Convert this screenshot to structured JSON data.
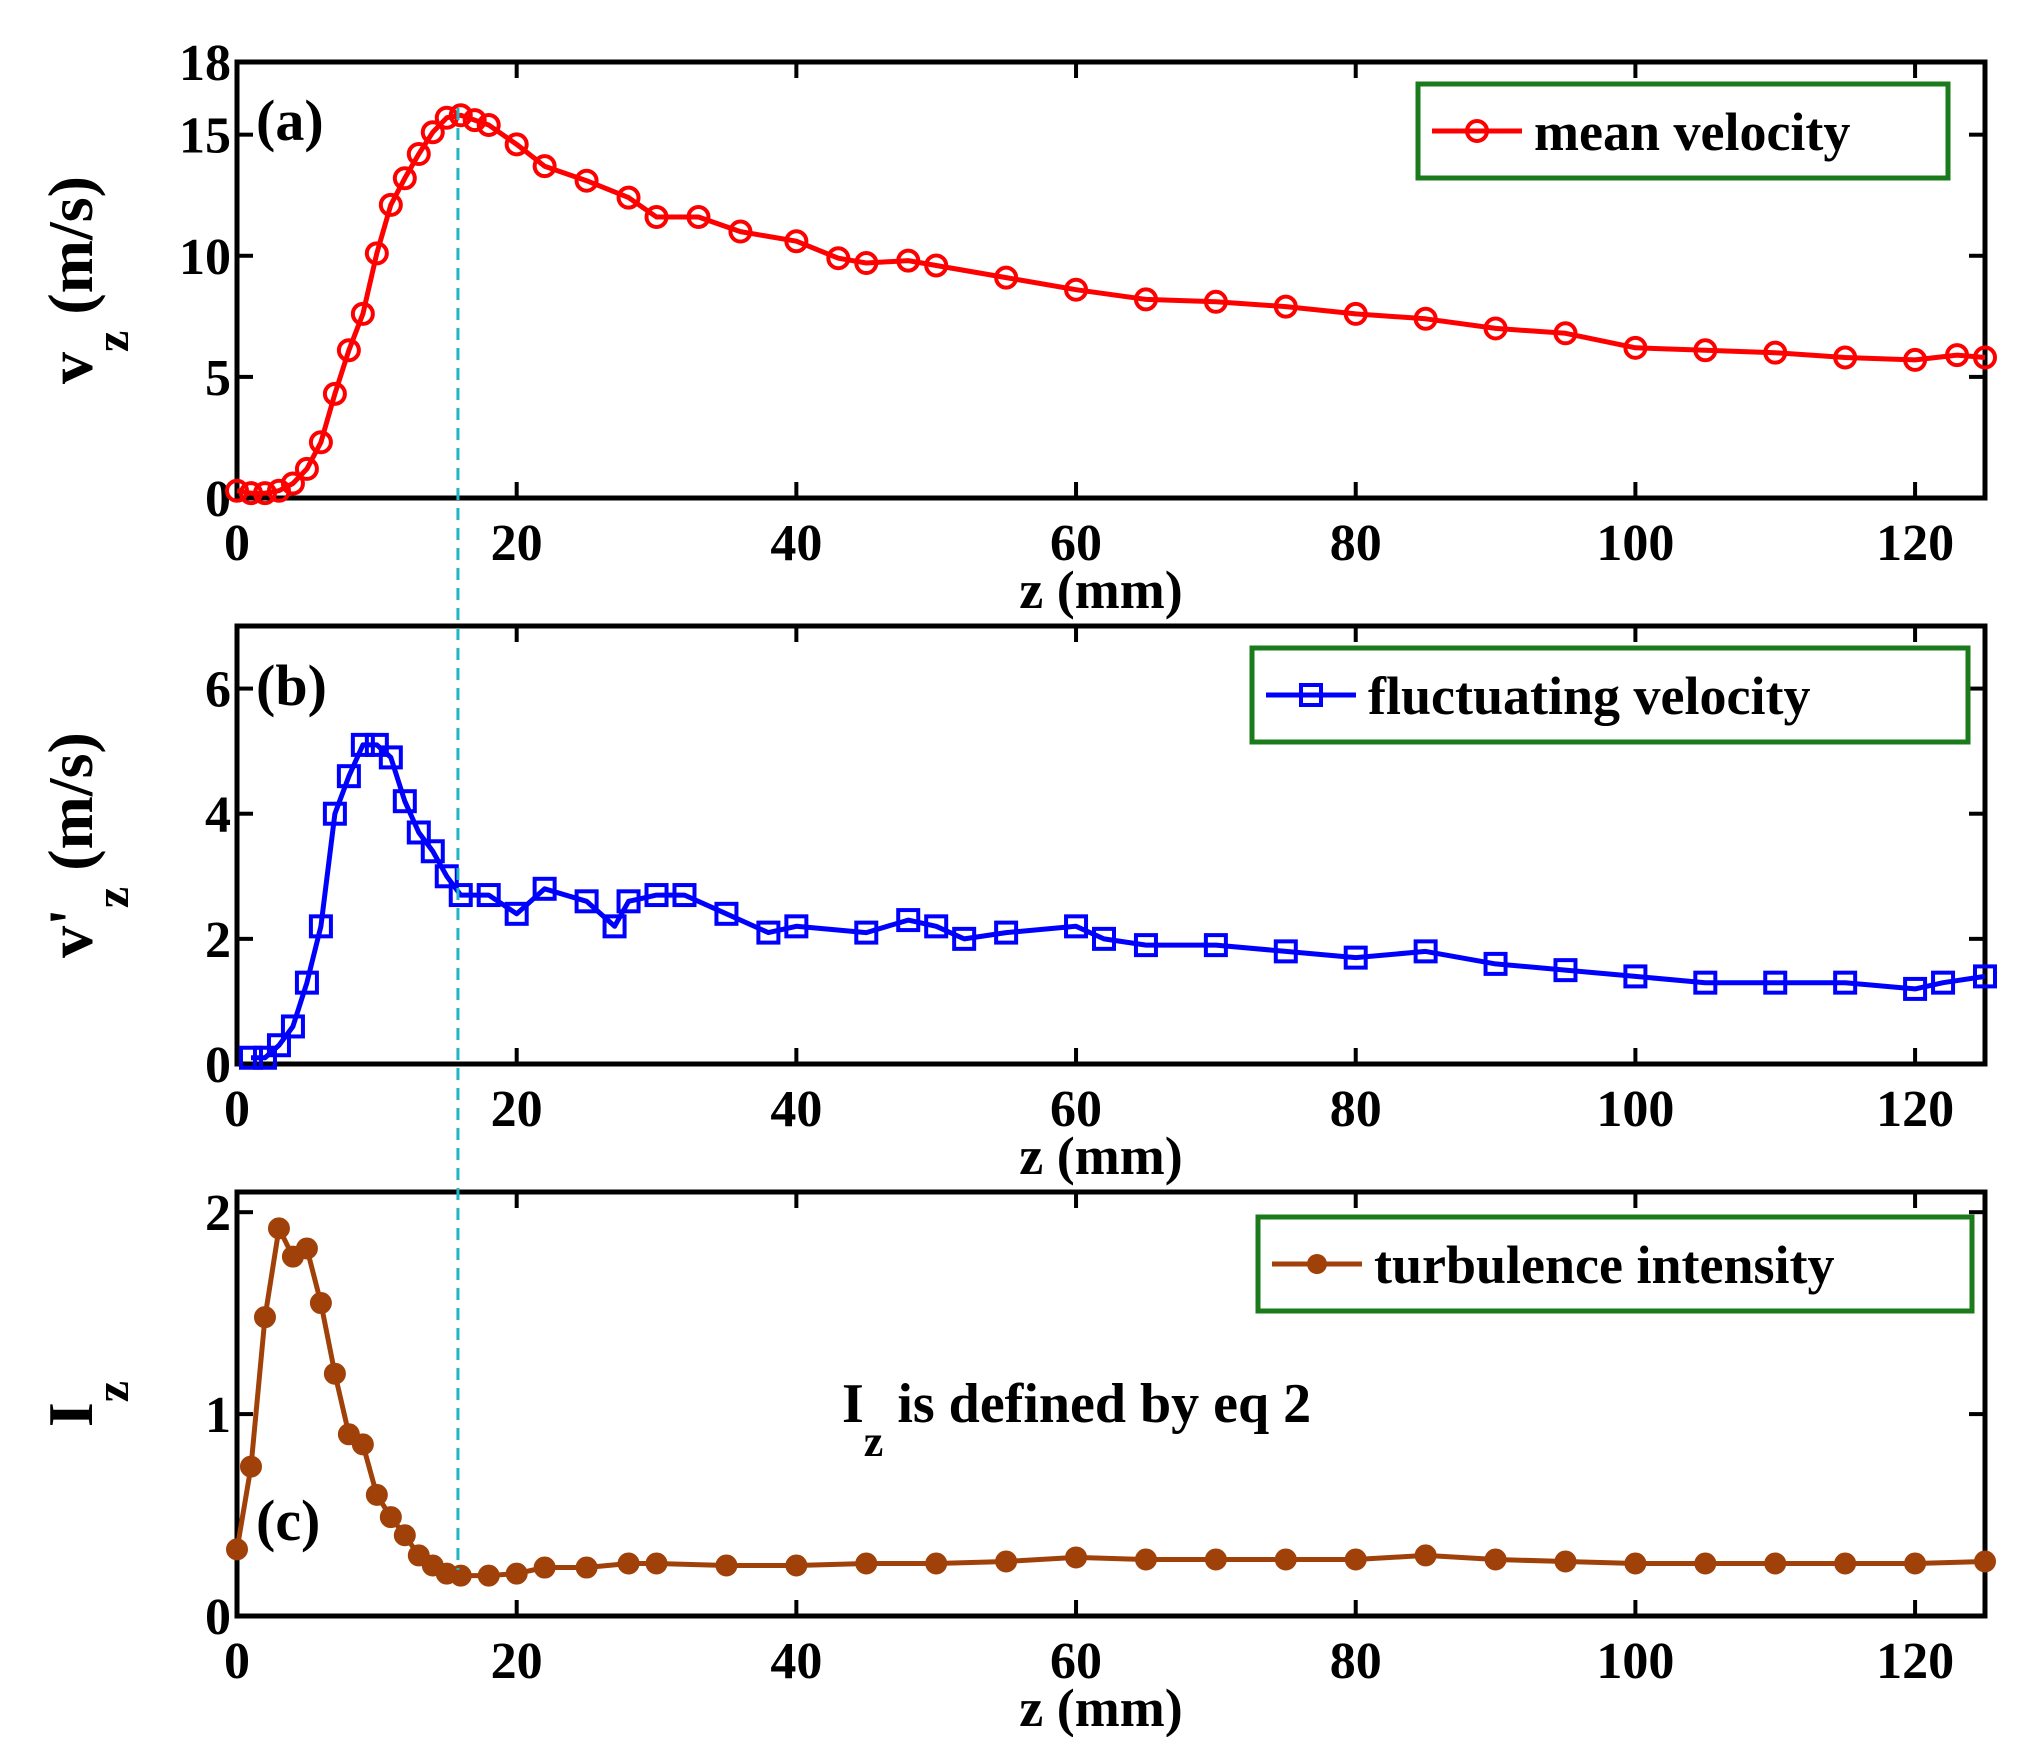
{
  "colors": {
    "mean": "#ff0000",
    "fluct": "#0000ff",
    "turb": "#a0410a",
    "tag": "#b12fc4",
    "legend_border": "#1b7a1b",
    "guide": "#22b5c4",
    "axis": "#000000"
  },
  "guide_line_z": 15.8,
  "panels": [
    {
      "tag": "(a)",
      "xlabel": "z (mm)",
      "ylabel_main": "v",
      "ylabel_sub": "z",
      "ylabel_rest": " (m/s)",
      "ylim": [
        0,
        18
      ],
      "yticks": [
        0,
        5,
        10,
        15,
        18
      ],
      "ytick_labels": [
        "0",
        "5",
        "10",
        "15",
        "18"
      ],
      "xlim": [
        0,
        125
      ],
      "xticks": [
        0,
        20,
        40,
        60,
        80,
        100,
        120
      ],
      "xtick_labels": [
        "0",
        "20",
        "40",
        "60",
        "80",
        "100",
        "120"
      ],
      "legend_label": "mean velocity"
    },
    {
      "tag": "(b)",
      "xlabel": "z (mm)",
      "ylabel_main": "v",
      "ylabel_prime": "'",
      "ylabel_sub": "z",
      "ylabel_rest": " (m/s)",
      "ylim": [
        0,
        7
      ],
      "yticks": [
        0,
        2,
        4,
        6
      ],
      "ytick_labels": [
        "0",
        "2",
        "4",
        "6"
      ],
      "xlim": [
        0,
        125
      ],
      "xticks": [
        0,
        20,
        40,
        60,
        80,
        100,
        120
      ],
      "xtick_labels": [
        "0",
        "20",
        "40",
        "60",
        "80",
        "100",
        "120"
      ],
      "legend_label": "fluctuating velocity"
    },
    {
      "tag": "(c)",
      "xlabel": "z (mm)",
      "ylabel_main": "I",
      "ylabel_sub": "z",
      "ylim": [
        0,
        2.1
      ],
      "yticks": [
        0,
        1,
        2
      ],
      "ytick_labels": [
        "0",
        "1",
        "2"
      ],
      "xlim": [
        0,
        125
      ],
      "xticks": [
        0,
        20,
        40,
        60,
        80,
        100,
        120
      ],
      "xtick_labels": [
        "0",
        "20",
        "40",
        "60",
        "80",
        "100",
        "120"
      ],
      "legend_label": "turbulence intensity",
      "annotation_main": "I",
      "annotation_sub": "z",
      "annotation_rest": " is defined by eq 2"
    }
  ],
  "chart_data": [
    {
      "type": "line",
      "title": "(a)",
      "xlabel": "z (mm)",
      "ylabel": "v_z (m/s)",
      "xlim": [
        0,
        125
      ],
      "ylim": [
        0,
        18
      ],
      "legend": "mean velocity",
      "legend_position": "top-right",
      "marker": "circle",
      "series": [
        {
          "name": "mean velocity",
          "x": [
            0,
            1,
            2,
            3,
            4,
            5,
            6,
            7,
            8,
            9,
            10,
            11,
            12,
            13,
            14,
            15,
            16,
            17,
            18,
            20,
            22,
            25,
            28,
            30,
            33,
            36,
            40,
            43,
            45,
            48,
            50,
            55,
            60,
            65,
            70,
            75,
            80,
            85,
            90,
            95,
            100,
            105,
            110,
            115,
            120,
            123,
            125
          ],
          "y": [
            0.3,
            0.2,
            0.2,
            0.3,
            0.6,
            1.2,
            2.3,
            4.3,
            6.1,
            7.6,
            10.1,
            12.1,
            13.2,
            14.2,
            15.1,
            15.7,
            15.8,
            15.6,
            15.4,
            14.6,
            13.7,
            13.1,
            12.4,
            11.6,
            11.6,
            11.0,
            10.6,
            9.9,
            9.7,
            9.8,
            9.6,
            9.1,
            8.6,
            8.2,
            8.1,
            7.9,
            7.6,
            7.4,
            7.0,
            6.8,
            6.2,
            6.1,
            6.0,
            5.8,
            5.7,
            5.9,
            5.8
          ]
        }
      ]
    },
    {
      "type": "line",
      "title": "(b)",
      "xlabel": "z (mm)",
      "ylabel": "v'_z (m/s)",
      "xlim": [
        0,
        125
      ],
      "ylim": [
        0,
        7
      ],
      "legend": "fluctuating velocity",
      "legend_position": "top-right",
      "marker": "square",
      "series": [
        {
          "name": "fluctuating velocity",
          "x": [
            1,
            2,
            3,
            4,
            5,
            6,
            7,
            8,
            9,
            10,
            11,
            12,
            13,
            14,
            15,
            16,
            18,
            20,
            22,
            25,
            27,
            28,
            30,
            32,
            35,
            38,
            40,
            45,
            48,
            50,
            52,
            55,
            60,
            62,
            65,
            70,
            75,
            80,
            85,
            90,
            95,
            100,
            105,
            110,
            115,
            120,
            122,
            125
          ],
          "y": [
            0.1,
            0.1,
            0.3,
            0.6,
            1.3,
            2.2,
            4.0,
            4.6,
            5.1,
            5.1,
            4.9,
            4.2,
            3.7,
            3.4,
            3.0,
            2.7,
            2.7,
            2.4,
            2.8,
            2.6,
            2.2,
            2.6,
            2.7,
            2.7,
            2.4,
            2.1,
            2.2,
            2.1,
            2.3,
            2.2,
            2.0,
            2.1,
            2.2,
            2.0,
            1.9,
            1.9,
            1.8,
            1.7,
            1.8,
            1.6,
            1.5,
            1.4,
            1.3,
            1.3,
            1.3,
            1.2,
            1.3,
            1.4
          ]
        }
      ]
    },
    {
      "type": "line",
      "title": "(c)",
      "xlabel": "z (mm)",
      "ylabel": "I_z",
      "xlim": [
        0,
        125
      ],
      "ylim": [
        0,
        2.1
      ],
      "legend": "turbulence intensity",
      "legend_position": "top-right",
      "marker": "dot",
      "annotation": "I_z is defined by eq 2",
      "series": [
        {
          "name": "turbulence intensity",
          "x": [
            0,
            1,
            2,
            3,
            4,
            5,
            6,
            7,
            8,
            9,
            10,
            11,
            12,
            13,
            14,
            15,
            16,
            18,
            20,
            22,
            25,
            28,
            30,
            35,
            40,
            45,
            50,
            55,
            60,
            65,
            70,
            75,
            80,
            85,
            90,
            95,
            100,
            105,
            110,
            115,
            120,
            125
          ],
          "y": [
            0.33,
            0.74,
            1.48,
            1.92,
            1.78,
            1.82,
            1.55,
            1.2,
            0.9,
            0.85,
            0.6,
            0.49,
            0.4,
            0.3,
            0.25,
            0.21,
            0.2,
            0.2,
            0.21,
            0.24,
            0.24,
            0.26,
            0.26,
            0.25,
            0.25,
            0.26,
            0.26,
            0.27,
            0.29,
            0.28,
            0.28,
            0.28,
            0.28,
            0.3,
            0.28,
            0.27,
            0.26,
            0.26,
            0.26,
            0.26,
            0.26,
            0.27
          ]
        }
      ]
    }
  ]
}
